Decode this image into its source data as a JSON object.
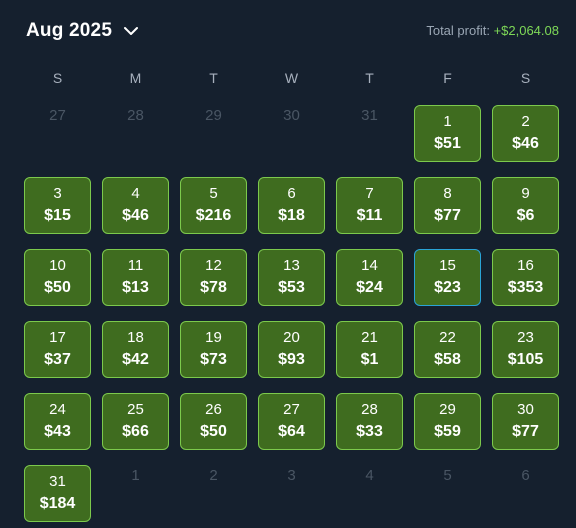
{
  "header": {
    "month_label": "Aug 2025",
    "total_label": "Total profit:",
    "total_value": "+$2,064.08"
  },
  "weekdays": [
    "S",
    "M",
    "T",
    "W",
    "T",
    "F",
    "S"
  ],
  "prev_month_days": [
    "27",
    "28",
    "29",
    "30",
    "31"
  ],
  "days": [
    {
      "day": "1",
      "profit": "$51"
    },
    {
      "day": "2",
      "profit": "$46"
    },
    {
      "day": "3",
      "profit": "$15"
    },
    {
      "day": "4",
      "profit": "$46"
    },
    {
      "day": "5",
      "profit": "$216"
    },
    {
      "day": "6",
      "profit": "$18"
    },
    {
      "day": "7",
      "profit": "$11"
    },
    {
      "day": "8",
      "profit": "$77"
    },
    {
      "day": "9",
      "profit": "$6"
    },
    {
      "day": "10",
      "profit": "$50"
    },
    {
      "day": "11",
      "profit": "$13"
    },
    {
      "day": "12",
      "profit": "$78"
    },
    {
      "day": "13",
      "profit": "$53"
    },
    {
      "day": "14",
      "profit": "$24"
    },
    {
      "day": "15",
      "profit": "$23"
    },
    {
      "day": "16",
      "profit": "$353"
    },
    {
      "day": "17",
      "profit": "$37"
    },
    {
      "day": "18",
      "profit": "$42"
    },
    {
      "day": "19",
      "profit": "$73"
    },
    {
      "day": "20",
      "profit": "$93"
    },
    {
      "day": "21",
      "profit": "$1"
    },
    {
      "day": "22",
      "profit": "$58"
    },
    {
      "day": "23",
      "profit": "$105"
    },
    {
      "day": "24",
      "profit": "$43"
    },
    {
      "day": "25",
      "profit": "$66"
    },
    {
      "day": "26",
      "profit": "$50"
    },
    {
      "day": "27",
      "profit": "$64"
    },
    {
      "day": "28",
      "profit": "$33"
    },
    {
      "day": "29",
      "profit": "$59"
    },
    {
      "day": "30",
      "profit": "$77"
    },
    {
      "day": "31",
      "profit": "$184"
    }
  ],
  "selected_day": "15",
  "next_month_days": [
    "1",
    "2",
    "3",
    "4",
    "5",
    "6"
  ],
  "colors": {
    "background": "#15202e",
    "cell_fill": "#3f6c1f",
    "cell_border": "#7cc94c",
    "selected_border": "#2aa3d6",
    "profit_positive": "#7ed957"
  },
  "icons": {
    "month_dropdown": "chevron-down-icon"
  }
}
